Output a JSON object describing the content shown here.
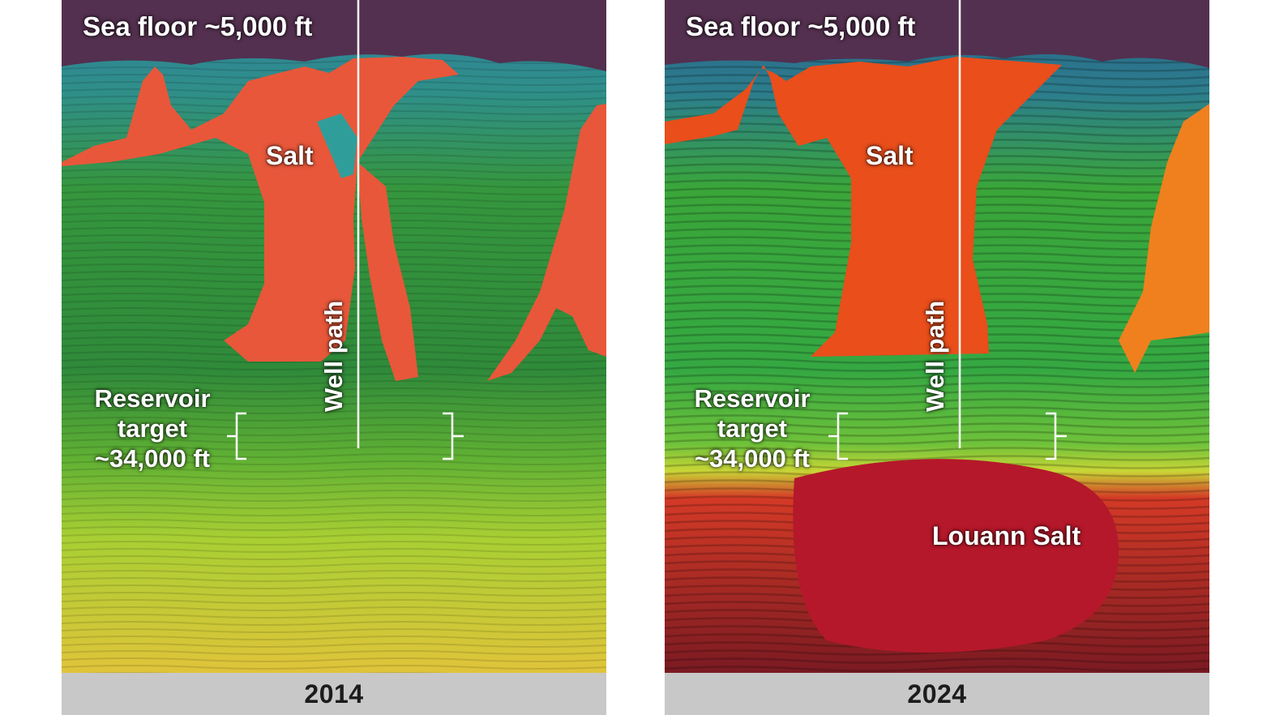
{
  "panels": [
    {
      "year": "2014",
      "labels": {
        "sea_floor": "Sea floor ~5,000 ft",
        "salt": "Salt",
        "well_path": "Well path",
        "reservoir_line1": "Reservoir",
        "reservoir_line2": "target",
        "reservoir_line3": "~34,000 ft"
      }
    },
    {
      "year": "2024",
      "labels": {
        "sea_floor": "Sea floor ~5,000 ft",
        "salt": "Salt",
        "well_path": "Well path",
        "reservoir_line1": "Reservoir",
        "reservoir_line2": "target",
        "reservoir_line3": "~34,000 ft",
        "louann_salt": "Louann Salt"
      }
    }
  ],
  "colors": {
    "sea": "#53304f",
    "salt_2014": "#e8573a",
    "salt_2024": "#e94e1b",
    "sediment_green": "#3a9a3a",
    "deep_yellow": "#d8c43a",
    "louann_red": "#b5182a",
    "caption_bar": "#c8c8c8"
  }
}
